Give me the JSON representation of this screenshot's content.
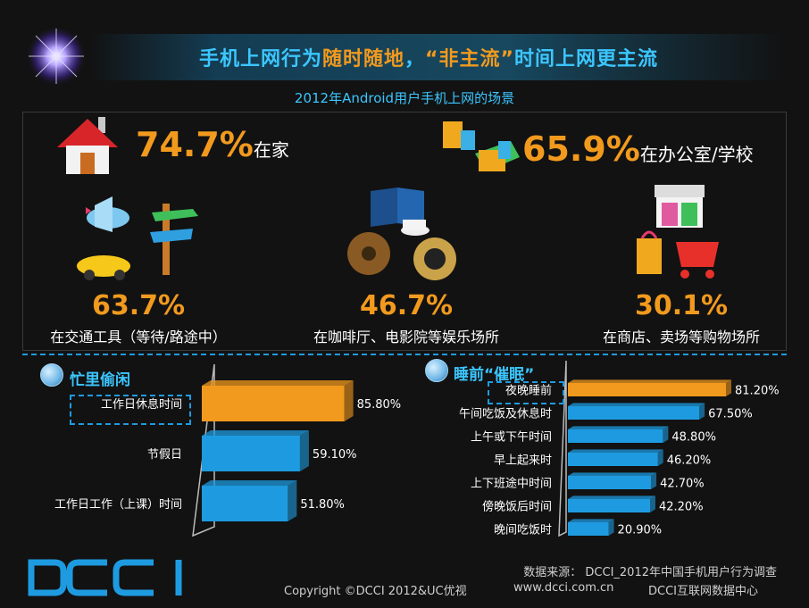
{
  "header": {
    "title_part1": "手机上网行为",
    "title_part2": "随时随地",
    "title_part3": "，",
    "title_part4": "“非主流”",
    "title_part5": "时间上网更主流",
    "subtitle": "2012年Android用户手机上网的场景"
  },
  "scenes": {
    "home": {
      "value": "74.7%",
      "label": "在家"
    },
    "office": {
      "value": "65.9%",
      "label": "在办公室/学校"
    },
    "transit": {
      "value": "63.7%",
      "label": "在交通工具（等待/路途中）"
    },
    "cafe": {
      "value": "46.7%",
      "label": "在咖啡厅、电影院等娱乐场所"
    },
    "shop": {
      "value": "30.1%",
      "label": "在商店、卖场等购物场所"
    }
  },
  "colors": {
    "orange": "#f29a1e",
    "blue": "#1e9be0",
    "title_blue": "#3cc6ff"
  },
  "chart_data": [
    {
      "type": "bar",
      "title": "忙里偷闲",
      "categories": [
        "工作日休息时间",
        "节假日",
        "工作日工作（上课）时间"
      ],
      "values": [
        85.8,
        59.1,
        51.8
      ],
      "labels": [
        "85.80%",
        "59.10%",
        "51.80%"
      ],
      "highlight_index": 0,
      "orientation": "horizontal",
      "unit": "%"
    },
    {
      "type": "bar",
      "title": "睡前“催眠”",
      "categories": [
        "夜晚睡前",
        "午间吃饭及休息时",
        "上午或下午时间",
        "早上起来时",
        "上下班途中时间",
        "傍晚饭后时间",
        "晚间吃饭时"
      ],
      "values": [
        81.2,
        67.5,
        48.8,
        46.2,
        42.7,
        42.2,
        20.9
      ],
      "labels": [
        "81.20%",
        "67.50%",
        "48.80%",
        "46.20%",
        "42.70%",
        "42.20%",
        "20.90%"
      ],
      "highlight_index": 0,
      "orientation": "horizontal",
      "unit": "%"
    }
  ],
  "footer": {
    "logo": "DCCI",
    "source": "数据来源： DCCI_2012年中国手机用户行为调查",
    "copyright": "Copyright ©DCCI 2012&UC优视",
    "url": "www.dcci.com.cn",
    "org": "DCCI互联网数据中心"
  }
}
